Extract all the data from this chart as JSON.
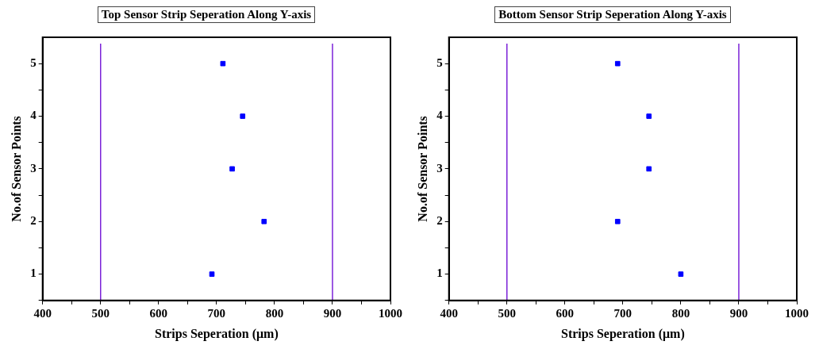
{
  "chart_data": [
    {
      "type": "scatter",
      "title": "Top Sensor Strip Seperation Along Y-axis",
      "xlabel": "Strips Seperation (μm)",
      "ylabel": "No.of Sensor Points",
      "x": [
        692,
        782,
        727,
        745,
        711
      ],
      "values": [
        1,
        2,
        3,
        4,
        5
      ],
      "color": "#0000ff",
      "marker": "square",
      "xlim": [
        400,
        1000
      ],
      "xticks": [
        400,
        {
          "value": 450,
          "label": null
        },
        500,
        {
          "value": 550,
          "label": null
        },
        600,
        {
          "value": 650,
          "label": null
        },
        700,
        {
          "value": 750,
          "label": null
        },
        800,
        {
          "value": 850,
          "label": null
        },
        900,
        {
          "value": 950,
          "label": null
        },
        1000
      ],
      "ylim": [
        0.5,
        5.5
      ],
      "yticks": [
        {
          "value": 0.5,
          "label": null
        },
        1,
        {
          "value": 1.5,
          "label": null
        },
        2,
        {
          "value": 2.5,
          "label": null
        },
        3,
        {
          "value": 3.5,
          "label": null
        },
        4,
        {
          "value": 4.5,
          "label": null
        },
        5
      ],
      "ref_lines": [
        {
          "axis": "x",
          "value": 500,
          "color": "#7b22d8"
        },
        {
          "axis": "x",
          "value": 900,
          "color": "#7b22d8"
        }
      ]
    },
    {
      "type": "scatter",
      "title": "Bottom Sensor Strip Seperation Along Y-axis",
      "xlabel": "Strips Seperation (μm)",
      "ylabel": "No.of Sensor Points",
      "x": [
        800,
        691,
        745,
        745,
        691
      ],
      "values": [
        1,
        2,
        3,
        4,
        5
      ],
      "color": "#0000ff",
      "marker": "square",
      "xlim": [
        400,
        1000
      ],
      "xticks": [
        400,
        {
          "value": 450,
          "label": null
        },
        500,
        {
          "value": 550,
          "label": null
        },
        600,
        {
          "value": 650,
          "label": null
        },
        700,
        {
          "value": 750,
          "label": null
        },
        800,
        {
          "value": 850,
          "label": null
        },
        900,
        {
          "value": 950,
          "label": null
        },
        1000
      ],
      "ylim": [
        0.5,
        5.5
      ],
      "yticks": [
        {
          "value": 0.5,
          "label": null
        },
        1,
        {
          "value": 1.5,
          "label": null
        },
        2,
        {
          "value": 2.5,
          "label": null
        },
        3,
        {
          "value": 3.5,
          "label": null
        },
        4,
        {
          "value": 4.5,
          "label": null
        },
        5
      ],
      "ref_lines": [
        {
          "axis": "x",
          "value": 500,
          "color": "#7b22d8"
        },
        {
          "axis": "x",
          "value": 900,
          "color": "#7b22d8"
        }
      ]
    }
  ]
}
